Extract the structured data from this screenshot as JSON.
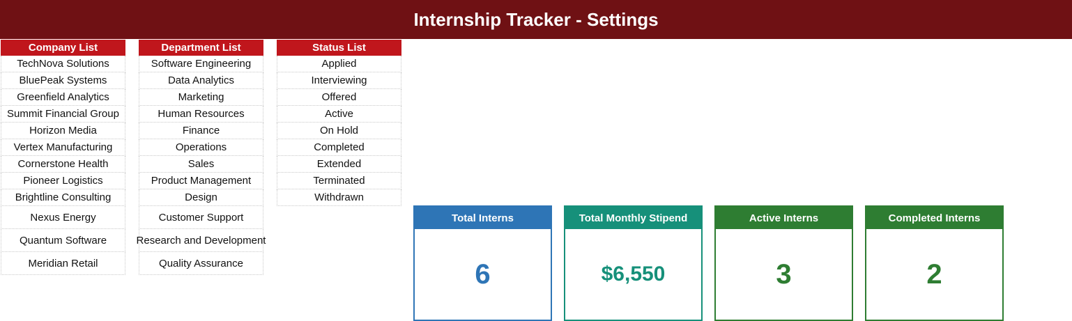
{
  "header": {
    "title": "Internship Tracker - Settings"
  },
  "lists": [
    {
      "title": "Company List",
      "items": [
        "TechNova Solutions",
        "BluePeak Systems",
        "Greenfield Analytics",
        "Summit Financial Group",
        "Horizon Media",
        "Vertex Manufacturing",
        "Cornerstone Health",
        "Pioneer Logistics",
        "Brightline Consulting",
        "Nexus Energy",
        "Quantum Software",
        "Meridian Retail"
      ]
    },
    {
      "title": "Department List",
      "items": [
        "Software Engineering",
        "Data Analytics",
        "Marketing",
        "Human Resources",
        "Finance",
        "Operations",
        "Sales",
        "Product Management",
        "Design",
        "Customer Support",
        "Research and Development",
        "Quality Assurance"
      ]
    },
    {
      "title": "Status List",
      "items": [
        "Applied",
        "Interviewing",
        "Offered",
        "Active",
        "On Hold",
        "Completed",
        "Extended",
        "Terminated",
        "Withdrawn"
      ]
    }
  ],
  "cards": [
    {
      "label": "Total Interns",
      "value": 6
    },
    {
      "label": "Total Monthly Stipend",
      "value": "$6,550"
    },
    {
      "label": "Active Interns",
      "value": 3
    },
    {
      "label": "Completed Interns",
      "value": 2
    }
  ]
}
